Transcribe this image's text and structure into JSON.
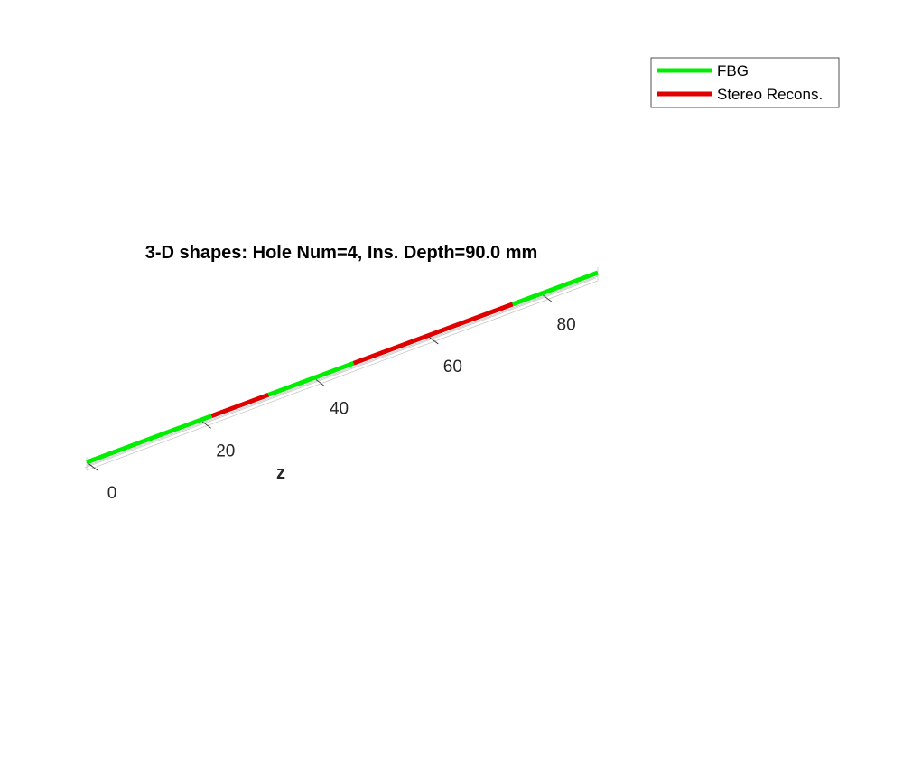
{
  "chart_data": {
    "type": "line",
    "title": "3-D shapes: Hole Num=4, Ins. Depth=90.0 mm",
    "zlabel": "z",
    "zlim": [
      0,
      90
    ],
    "z_ticks": [
      0,
      20,
      40,
      60,
      80
    ],
    "tick_labels": [
      "0",
      "20",
      "40",
      "60",
      "80"
    ],
    "legend": {
      "placement": "top-right",
      "entries": [
        "FBG",
        "Stereo Recons."
      ]
    },
    "series": [
      {
        "name": "FBG",
        "color": "#00ee00",
        "segments": [
          [
            0,
            22
          ],
          [
            32,
            47
          ],
          [
            75,
            90
          ]
        ]
      },
      {
        "name": "Stereo Recons.",
        "color": "#e00000",
        "segments": [
          [
            22,
            32
          ],
          [
            47,
            75
          ]
        ]
      }
    ]
  }
}
